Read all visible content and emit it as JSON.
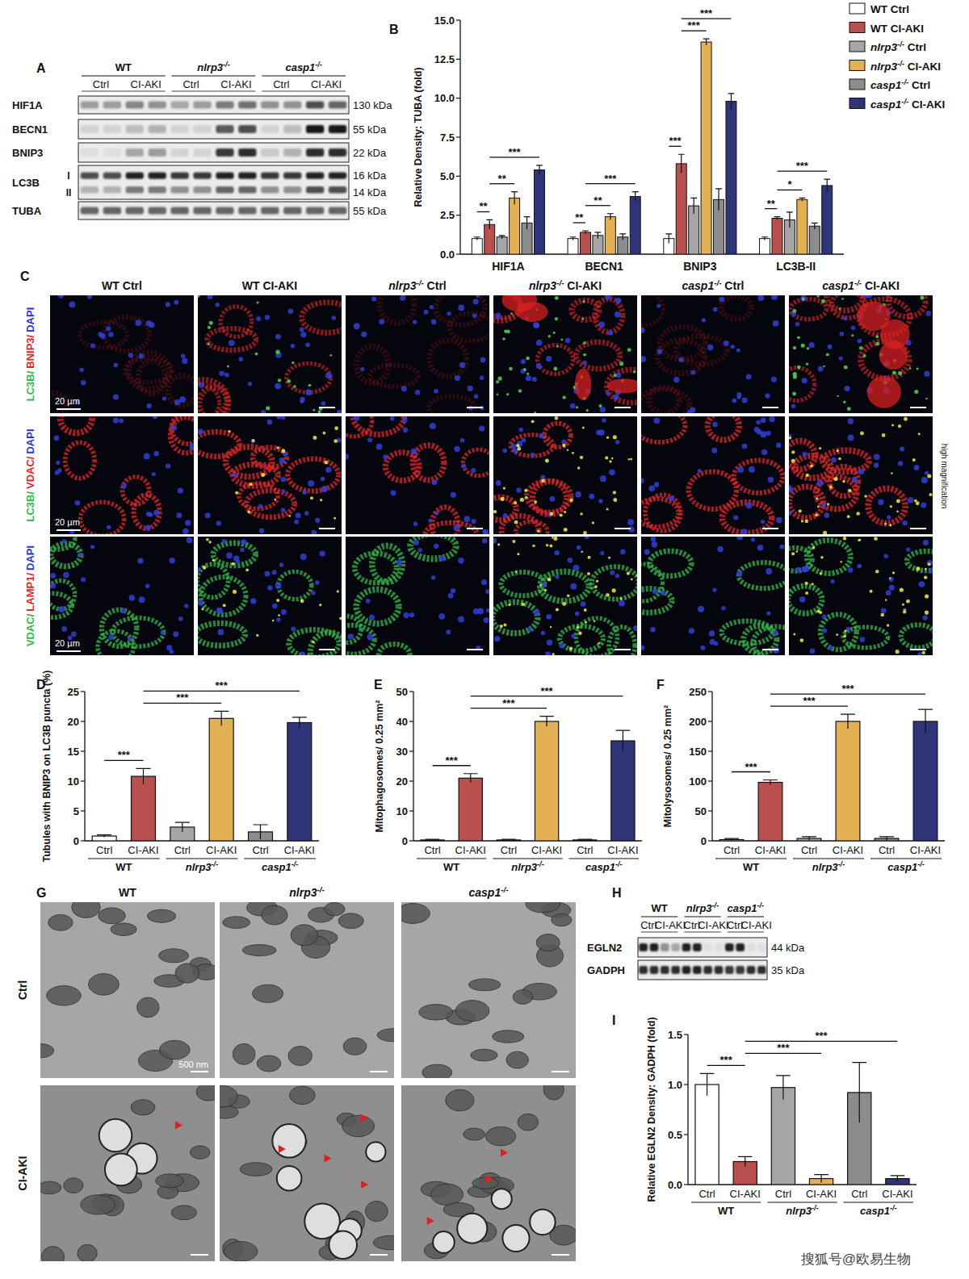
{
  "panel_labels": [
    "A",
    "B",
    "C",
    "D",
    "E",
    "F",
    "G",
    "H",
    "I"
  ],
  "watermark": "搜狐号@欧易生物",
  "blots": [
    {
      "groups": [
        "WT",
        "nlrp3-/-",
        "casp1-/-"
      ],
      "conditions": [
        "Ctrl",
        "CI-AKI"
      ],
      "rows": [
        {
          "label": "HIF1A",
          "kda": "130 kDa",
          "bands": [
            0.35,
            0.35,
            0.45,
            0.4,
            0.3,
            0.35,
            0.5,
            0.55,
            0.4,
            0.4,
            0.7,
            0.6
          ]
        },
        {
          "label": "BECN1",
          "kda": "55 kDa",
          "bands": [
            0.1,
            0.1,
            0.2,
            0.25,
            0.1,
            0.1,
            0.65,
            0.7,
            0.1,
            0.2,
            0.95,
            0.95
          ]
        },
        {
          "label": "BNIP3",
          "kda": "22 kDa",
          "bands": [
            0.05,
            0.05,
            0.3,
            0.35,
            0.1,
            0.1,
            0.8,
            0.85,
            0.15,
            0.25,
            0.85,
            0.85
          ]
        },
        {
          "label": "LC3B",
          "sublabels": [
            "I",
            "II"
          ],
          "kda": [
            "16 kDa",
            "14 kDa"
          ],
          "bands": [
            0.7,
            0.7,
            0.9,
            0.9,
            0.8,
            0.8,
            0.9,
            0.9,
            0.8,
            0.8,
            0.9,
            0.9
          ],
          "bands2": [
            0.25,
            0.25,
            0.5,
            0.5,
            0.4,
            0.4,
            0.6,
            0.6,
            0.4,
            0.4,
            0.7,
            0.7
          ]
        },
        {
          "label": "TUBA",
          "kda": "55 kDa",
          "bands": [
            0.6,
            0.6,
            0.6,
            0.6,
            0.6,
            0.6,
            0.6,
            0.6,
            0.6,
            0.6,
            0.6,
            0.6
          ]
        }
      ]
    },
    {
      "groups": [
        "WT",
        "nlrp3-/-",
        "casp1-/-"
      ],
      "conditions": [
        "Ctrl",
        "CI-AKI"
      ],
      "rows": [
        {
          "label": "EGLN2",
          "kda": "44 kDa",
          "bands": [
            0.9,
            0.9,
            0.4,
            0.3,
            0.9,
            0.9,
            0.05,
            0.05,
            0.9,
            0.9,
            0.05,
            0.05
          ]
        },
        {
          "label": "GADPH",
          "kda": "35 kDa",
          "bands": [
            0.85,
            0.85,
            0.85,
            0.85,
            0.9,
            0.9,
            0.85,
            0.85,
            0.8,
            0.8,
            0.85,
            0.85
          ]
        }
      ]
    }
  ],
  "micrographs": {
    "columns": [
      "WT Ctrl",
      "WT CI-AKI",
      "nlrp3-/- Ctrl",
      "nlrp3-/- CI-AKI",
      "casp1-/- Ctrl",
      "casp1-/- CI-AKI"
    ],
    "rows": [
      {
        "stains": [
          {
            "text": "LC3B/",
            "color": "#33b84a"
          },
          {
            "text": "BNIP3/",
            "color": "#e02828"
          },
          {
            "text": "DAPI",
            "color": "#2a3ad0"
          }
        ]
      },
      {
        "stains": [
          {
            "text": "LC3B/",
            "color": "#33b84a"
          },
          {
            "text": "VDAC/",
            "color": "#e02828"
          },
          {
            "text": "DAPI",
            "color": "#2a3ad0"
          }
        ]
      },
      {
        "stains": [
          {
            "text": "VDAC/",
            "color": "#33b84a"
          },
          {
            "text": "LAMP1/",
            "color": "#e02828"
          },
          {
            "text": "DAPI",
            "color": "#2a3ad0"
          }
        ]
      }
    ],
    "scale_bar": "20 µm",
    "side_label": "high magnification"
  },
  "em": {
    "columns": [
      "WT",
      "nlrp3-/-",
      "casp1-/-"
    ],
    "rows": [
      "Ctrl",
      "CI-AKI"
    ],
    "scale_bar": "500 nm",
    "arrows": [
      1,
      4,
      3
    ]
  },
  "chart_data": [
    {
      "type": "bar",
      "y_label": "Relative Density: TUBA (fold)",
      "categories": [
        "HIF1A",
        "BECN1",
        "BNIP3",
        "LC3B-II"
      ],
      "series": [
        {
          "name": "WT Ctrl",
          "color": "#ffffff",
          "values": [
            1.0,
            1.0,
            1.0,
            1.0
          ],
          "errors": [
            0.1,
            0.1,
            0.3,
            0.1
          ]
        },
        {
          "name": "WT CI-AKI",
          "color": "#b8504e",
          "values": [
            1.9,
            1.4,
            5.8,
            2.3
          ],
          "errors": [
            0.3,
            0.1,
            0.6,
            0.1
          ]
        },
        {
          "name": "nlrp3-/- Ctrl",
          "color": "#a6a6a6",
          "values": [
            1.1,
            1.2,
            3.1,
            2.2
          ],
          "errors": [
            0.1,
            0.2,
            0.5,
            0.5
          ]
        },
        {
          "name": "nlrp3-/- CI-AKI",
          "color": "#e3b054",
          "values": [
            3.6,
            2.4,
            13.6,
            3.5
          ],
          "errors": [
            0.4,
            0.2,
            0.2,
            0.1
          ]
        },
        {
          "name": "casp1-/- Ctrl",
          "color": "#8c8c8c",
          "values": [
            2.0,
            1.1,
            3.5,
            1.8
          ],
          "errors": [
            0.4,
            0.2,
            0.7,
            0.2
          ]
        },
        {
          "name": "casp1-/- CI-AKI",
          "color": "#2f3579",
          "values": [
            5.4,
            3.7,
            9.8,
            4.4
          ],
          "errors": [
            0.3,
            0.3,
            0.5,
            0.4
          ]
        }
      ],
      "ylim": [
        0,
        15
      ],
      "yticks": [
        {
          "value": 0,
          "label": "0.0"
        },
        2.5,
        {
          "value": 5,
          "label": "5.0"
        },
        7.5,
        {
          "value": 10,
          "label": "10.0"
        },
        12.5,
        {
          "value": 15,
          "label": "15.0"
        }
      ],
      "legend": "upper right",
      "annotations": [
        {
          "category": 0,
          "from": 0,
          "to": 1,
          "text": "**"
        },
        {
          "category": 0,
          "from": 1,
          "to": 3,
          "text": "**"
        },
        {
          "category": 0,
          "from": 1,
          "to": 5,
          "text": "***"
        },
        {
          "category": 1,
          "from": 0,
          "to": 1,
          "text": "**"
        },
        {
          "category": 1,
          "from": 1,
          "to": 3,
          "text": "**"
        },
        {
          "category": 1,
          "from": 1,
          "to": 5,
          "text": "***"
        },
        {
          "category": 2,
          "from": 0,
          "to": 1,
          "text": "***"
        },
        {
          "category": 2,
          "from": 1,
          "to": 3,
          "text": "***"
        },
        {
          "category": 2,
          "from": 1,
          "to": 5,
          "text": "***"
        },
        {
          "category": 3,
          "from": 0,
          "to": 1,
          "text": "**"
        },
        {
          "category": 3,
          "from": 1,
          "to": 3,
          "text": "*"
        },
        {
          "category": 3,
          "from": 1,
          "to": 5,
          "text": "***"
        }
      ]
    },
    {
      "type": "bar",
      "y_label": "Tubules with BNIP3 on LC3B puncta (%)",
      "categories": [
        "Ctrl",
        "CI-AKI",
        "Ctrl",
        "CI-AKI",
        "Ctrl",
        "CI-AKI"
      ],
      "groups": [
        "WT",
        "nlrp3-/-",
        "casp1-/-"
      ],
      "values": [
        0.8,
        10.8,
        2.3,
        20.5,
        1.5,
        19.8
      ],
      "errors": [
        0.2,
        1.3,
        0.8,
        1.2,
        1.2,
        0.9
      ],
      "colors": [
        "#ffffff",
        "#b8504e",
        "#a6a6a6",
        "#e3b054",
        "#8c8c8c",
        "#2f3579"
      ],
      "ylim": [
        0,
        25
      ],
      "yticks": [
        0,
        5,
        10,
        15,
        20,
        25
      ],
      "annotations": [
        {
          "from": 0,
          "to": 1,
          "text": "***"
        },
        {
          "from": 1,
          "to": 3,
          "text": "***"
        },
        {
          "from": 1,
          "to": 5,
          "text": "***"
        }
      ]
    },
    {
      "type": "bar",
      "y_label": "Mitophagosomes/ 0.25 mm²",
      "categories": [
        "Ctrl",
        "CI-AKI",
        "Ctrl",
        "CI-AKI",
        "Ctrl",
        "CI-AKI"
      ],
      "groups": [
        "WT",
        "nlrp3-/-",
        "casp1-/-"
      ],
      "values": [
        0.3,
        21,
        0.3,
        40,
        0.3,
        33.5
      ],
      "errors": [
        0.2,
        1.5,
        0.2,
        1.7,
        0.2,
        3.5
      ],
      "colors": [
        "#ffffff",
        "#b8504e",
        "#a6a6a6",
        "#e3b054",
        "#8c8c8c",
        "#2f3579"
      ],
      "ylim": [
        0,
        50
      ],
      "yticks": [
        0,
        10,
        20,
        30,
        40,
        50
      ],
      "annotations": [
        {
          "from": 0,
          "to": 1,
          "text": "***"
        },
        {
          "from": 1,
          "to": 3,
          "text": "***"
        },
        {
          "from": 1,
          "to": 5,
          "text": "***"
        }
      ]
    },
    {
      "type": "bar",
      "y_label": "Mitolysosomes/ 0.25 mm²",
      "categories": [
        "Ctrl",
        "CI-AKI",
        "Ctrl",
        "CI-AKI",
        "Ctrl",
        "CI-AKI"
      ],
      "groups": [
        "WT",
        "nlrp3-/-",
        "casp1-/-"
      ],
      "values": [
        2,
        98,
        4,
        200,
        4,
        200
      ],
      "errors": [
        2,
        4,
        3,
        12,
        3,
        20
      ],
      "colors": [
        "#ffffff",
        "#b8504e",
        "#a6a6a6",
        "#e3b054",
        "#8c8c8c",
        "#2f3579"
      ],
      "ylim": [
        0,
        250
      ],
      "yticks": [
        0,
        50,
        100,
        150,
        200,
        250
      ],
      "annotations": [
        {
          "from": 0,
          "to": 1,
          "text": "***"
        },
        {
          "from": 1,
          "to": 3,
          "text": "***"
        },
        {
          "from": 1,
          "to": 5,
          "text": "***"
        }
      ]
    },
    {
      "type": "bar",
      "y_label": "Relative EGLN2 Density: GADPH (fold)",
      "categories": [
        "Ctrl",
        "CI-AKI",
        "Ctrl",
        "CI-AKI",
        "Ctrl",
        "CI-AKI"
      ],
      "groups": [
        "WT",
        "nlrp3-/-",
        "casp1-/-"
      ],
      "values": [
        1.0,
        0.23,
        0.97,
        0.06,
        0.92,
        0.06
      ],
      "errors": [
        0.11,
        0.05,
        0.12,
        0.04,
        0.3,
        0.03
      ],
      "colors": [
        "#ffffff",
        "#b8504e",
        "#a6a6a6",
        "#e3b054",
        "#8c8c8c",
        "#2f3579"
      ],
      "ylim": [
        0,
        1.5
      ],
      "yticks": [
        {
          "value": 0,
          "label": "0.0"
        },
        0.5,
        {
          "value": 1,
          "label": "1.0"
        },
        1.5
      ],
      "annotations": [
        {
          "from": 0,
          "to": 1,
          "text": "***"
        },
        {
          "from": 1,
          "to": 3,
          "text": "***"
        },
        {
          "from": 1,
          "to": 5,
          "text": "***"
        }
      ]
    }
  ]
}
